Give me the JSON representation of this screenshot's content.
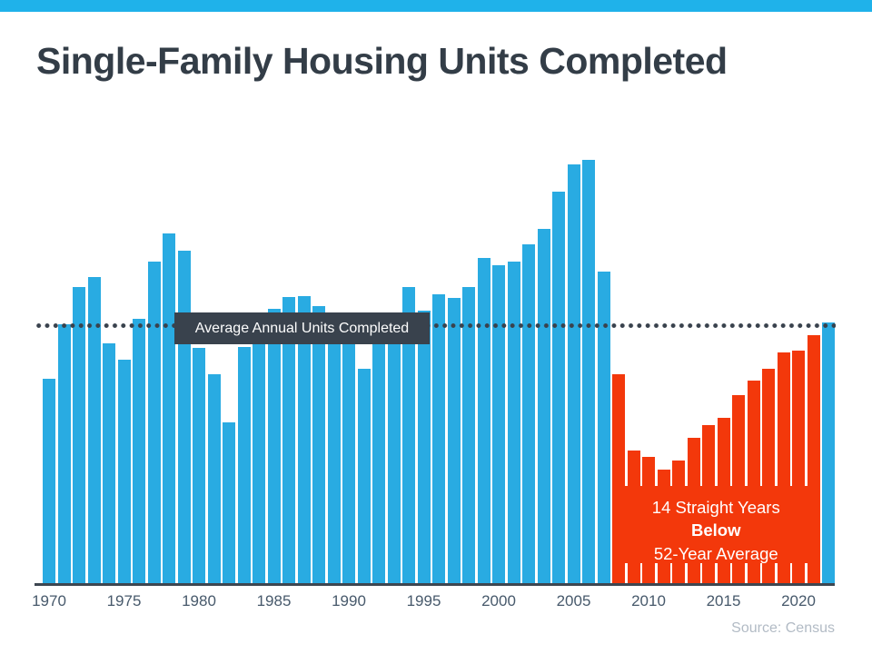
{
  "title": "Single-Family Housing Units Completed",
  "source_credit": "Source: Census",
  "theme": {
    "top_strip_color": "#1fb2ea",
    "bar_blue": "#29abe2",
    "bar_red": "#f3380b",
    "dark_slate": "#39424d",
    "axis_color": "#3e4650",
    "tick_label_color": "#47596b",
    "title_color": "#333d47",
    "muted_text_color": "#b2bbc5",
    "annotation_text_color": "#ffffff"
  },
  "chart_data": {
    "type": "bar",
    "title": "Single-Family Housing Units Completed",
    "xlabel": "",
    "ylabel": "",
    "y_axis_visible": false,
    "units": "thousands of single-family housing units completed per year (estimated from bar heights)",
    "years": [
      1970,
      1971,
      1972,
      1973,
      1974,
      1975,
      1976,
      1977,
      1978,
      1979,
      1980,
      1981,
      1982,
      1983,
      1984,
      1985,
      1986,
      1987,
      1988,
      1989,
      1990,
      1991,
      1992,
      1993,
      1994,
      1995,
      1996,
      1997,
      1998,
      1999,
      2000,
      2001,
      2002,
      2003,
      2004,
      2005,
      2006,
      2007,
      2008,
      2009,
      2010,
      2011,
      2012,
      2013,
      2014,
      2015,
      2016,
      2017,
      2018,
      2019,
      2020,
      2021,
      2022
    ],
    "values": [
      802,
      1014,
      1160,
      1197,
      940,
      875,
      1034,
      1258,
      1369,
      1301,
      920,
      819,
      632,
      924,
      1025,
      1072,
      1120,
      1123,
      1085,
      1026,
      966,
      838,
      964,
      1039,
      1160,
      1066,
      1129,
      1116,
      1160,
      1270,
      1242,
      1256,
      1325,
      1386,
      1532,
      1636,
      1654,
      1218,
      819,
      520,
      496,
      447,
      483,
      569,
      620,
      648,
      738,
      795,
      840,
      903,
      912,
      971,
      1020
    ],
    "x_tick_labels": [
      "1970",
      "1975",
      "1980",
      "1985",
      "1990",
      "1995",
      "2000",
      "2005",
      "2010",
      "2015",
      "2020"
    ],
    "average_value": 1008,
    "average_line_style": "dotted",
    "average_label": "Average Annual Units Completed",
    "below_period": {
      "start_year": 2008,
      "end_year": 2021
    },
    "annotation": {
      "line1": "14 Straight Years",
      "line2": "Below",
      "line3": "52-Year Average"
    },
    "colors": {
      "above_average": "#29abe2",
      "below_average": "#f3380b"
    },
    "legend": "none",
    "grid": "off"
  }
}
